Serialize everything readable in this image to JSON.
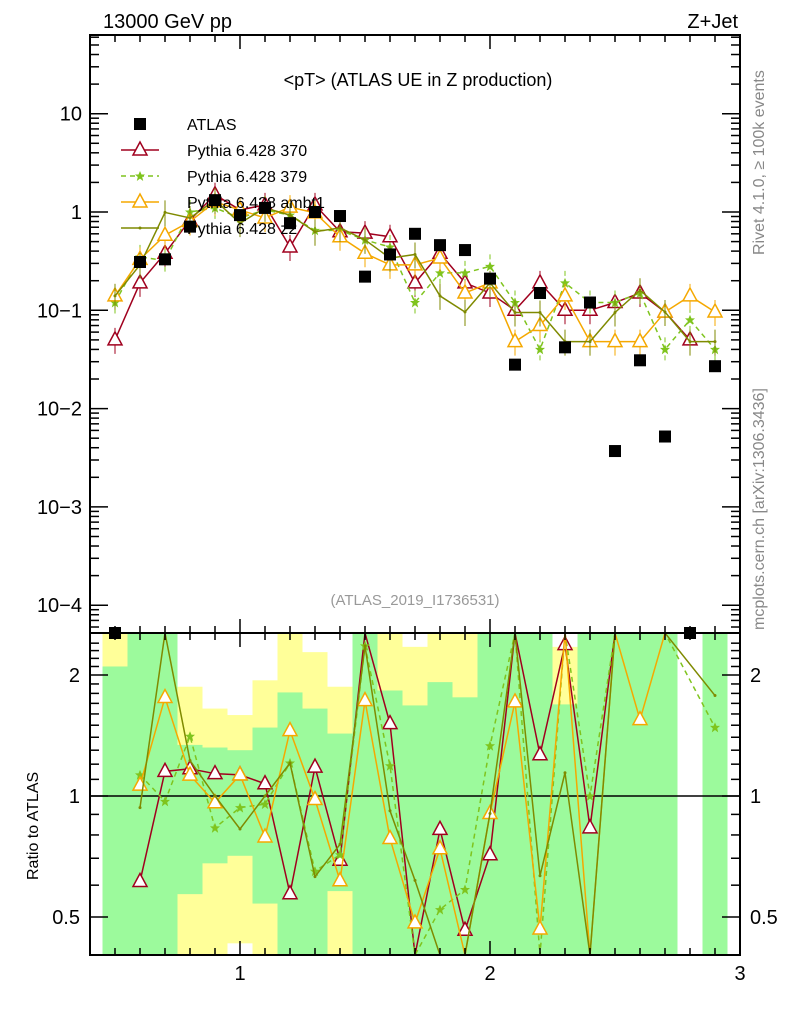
{
  "header": {
    "left": "13000 GeV pp",
    "right": "Z+Jet"
  },
  "side_text": {
    "top": "Rivet 4.1.0, ≥ 100k events",
    "bottom": "mcplots.cern.ch [arXiv:1306.3436]"
  },
  "chart_data": [
    {
      "type": "line",
      "title": "<pT> (ATLAS UE in Z production)",
      "annotation": "(ATLAS_2019_I1736531)",
      "xlabel": "",
      "ylabel": "",
      "yscale": "log",
      "xlim": [
        0.4,
        3.0
      ],
      "ylim": [
        5e-05,
        63
      ],
      "xticks": [
        "1",
        "2",
        "3"
      ],
      "yticks": [
        {
          "v": 10,
          "label": "10"
        },
        {
          "v": 1,
          "label": "1"
        },
        {
          "v": 0.1,
          "label": "10−1"
        },
        {
          "v": 0.01,
          "label": "10−2"
        },
        {
          "v": 0.001,
          "label": "10−3"
        },
        {
          "v": 0.0001,
          "label": "10−4"
        }
      ],
      "legend_position": "top-left",
      "x": [
        0.5,
        0.6,
        0.7,
        0.8,
        0.9,
        1.0,
        1.1,
        1.2,
        1.3,
        1.4,
        1.5,
        1.6,
        1.7,
        1.8,
        1.9,
        2.0,
        2.1,
        2.2,
        2.3,
        2.4,
        2.5,
        2.6,
        2.7,
        2.8,
        2.9
      ],
      "series": [
        {
          "name": "ATLAS",
          "color": "#000000",
          "marker": "square",
          "line": "none",
          "values": [
            5e-05,
            0.31,
            0.33,
            0.71,
            1.32,
            0.93,
            1.1,
            0.77,
            1.0,
            0.91,
            0.22,
            0.37,
            0.6,
            0.46,
            0.41,
            0.21,
            0.028,
            0.15,
            0.042,
            0.12,
            0.0037,
            0.031,
            0.0052,
            5e-05,
            0.027
          ]
        },
        {
          "name": "Pythia 6.428 370",
          "color": "#a0001e",
          "marker": "triangle",
          "line": "solid",
          "values": [
            0.05,
            0.19,
            0.38,
            0.83,
            1.5,
            1.05,
            1.18,
            0.44,
            1.18,
            0.63,
            0.61,
            0.56,
            0.19,
            0.38,
            0.19,
            0.15,
            0.1,
            0.19,
            0.1,
            0.1,
            0.12,
            0.15,
            0.096,
            0.05,
            null
          ]
        },
        {
          "name": "Pythia 6.428 379",
          "color": "#7fc41e",
          "marker": "star",
          "line": "dashed",
          "values": [
            0.12,
            0.35,
            0.32,
            1.0,
            1.1,
            0.87,
            1.05,
            0.93,
            0.65,
            0.65,
            0.52,
            0.44,
            0.12,
            0.24,
            0.24,
            0.28,
            0.12,
            0.04,
            0.19,
            0.12,
            0.12,
            0.15,
            0.04,
            0.08,
            0.04
          ]
        },
        {
          "name": "Pythia 6.428 ambt1",
          "color": "#f5a800",
          "marker": "triangle",
          "line": "solid",
          "values": [
            0.14,
            0.33,
            0.58,
            0.8,
            1.27,
            1.05,
            0.87,
            1.12,
            0.98,
            0.56,
            0.38,
            0.29,
            0.29,
            0.34,
            0.15,
            0.19,
            0.048,
            0.07,
            0.14,
            0.048,
            0.048,
            0.048,
            0.096,
            0.14,
            0.096
          ]
        },
        {
          "name": "Pythia 6.428 z2",
          "color": "#7f8a00",
          "marker": "dot",
          "line": "solid",
          "values": [
            0.14,
            0.29,
            0.99,
            0.87,
            1.32,
            0.77,
            1.1,
            0.93,
            0.63,
            0.69,
            0.52,
            0.34,
            0.37,
            0.14,
            0.096,
            0.19,
            0.095,
            0.095,
            0.048,
            0.048,
            0.095,
            0.16,
            0.096,
            0.048,
            0.048
          ]
        }
      ]
    },
    {
      "type": "line",
      "title": "",
      "ylabel": "Ratio to ATLAS",
      "yscale": "log",
      "xlim": [
        0.4,
        3.0
      ],
      "ylim": [
        0.4,
        2.54
      ],
      "xticks": [
        "1",
        "2",
        "3"
      ],
      "yticks": [
        {
          "v": 2,
          "label": "2"
        },
        {
          "v": 1,
          "label": "1"
        },
        {
          "v": 0.5,
          "label": "0.5"
        }
      ],
      "band_colors": {
        "inner": "#9cfa9c",
        "outer": "#ffff99"
      },
      "bands": [
        {
          "x": 0.5,
          "inner": [
            0.3,
            2.1
          ],
          "outer": [
            0.3,
            3
          ]
        },
        {
          "x": 0.6,
          "inner": [
            0.3,
            3
          ],
          "outer": [
            0.3,
            3
          ]
        },
        {
          "x": 0.7,
          "inner": [
            0.3,
            3
          ],
          "outer": [
            0.3,
            3
          ]
        },
        {
          "x": 0.8,
          "inner": [
            0.57,
            1.34
          ],
          "outer": [
            0.3,
            1.87
          ]
        },
        {
          "x": 0.9,
          "inner": [
            0.68,
            1.32
          ],
          "outer": [
            0.3,
            1.65
          ]
        },
        {
          "x": 1.0,
          "inner": [
            0.71,
            1.3
          ],
          "outer": [
            0.43,
            1.59
          ]
        },
        {
          "x": 1.1,
          "inner": [
            0.54,
            1.48
          ],
          "outer": [
            0.3,
            1.94
          ]
        },
        {
          "x": 1.2,
          "inner": [
            0.3,
            1.81
          ],
          "outer": [
            0.3,
            3
          ]
        },
        {
          "x": 1.3,
          "inner": [
            0.3,
            1.65
          ],
          "outer": [
            0.3,
            2.28
          ]
        },
        {
          "x": 1.4,
          "inner": [
            0.58,
            1.43
          ],
          "outer": [
            0.3,
            1.87
          ]
        },
        {
          "x": 1.5,
          "inner": [
            0.3,
            3
          ],
          "outer": [
            0.3,
            3
          ]
        },
        {
          "x": 1.6,
          "inner": [
            0.3,
            1.83
          ],
          "outer": [
            0.3,
            3
          ]
        },
        {
          "x": 1.7,
          "inner": [
            0.3,
            1.68
          ],
          "outer": [
            0.3,
            2.35
          ]
        },
        {
          "x": 1.8,
          "inner": [
            0.3,
            1.92
          ],
          "outer": [
            0.3,
            3
          ]
        },
        {
          "x": 1.9,
          "inner": [
            0.3,
            1.76
          ],
          "outer": [
            0.3,
            3
          ]
        },
        {
          "x": 2.0,
          "inner": [
            0.3,
            3
          ],
          "outer": [
            0.3,
            3
          ]
        },
        {
          "x": 2.1,
          "inner": [
            0.3,
            3
          ],
          "outer": [
            0.3,
            3
          ]
        },
        {
          "x": 2.2,
          "inner": [
            0.3,
            3
          ],
          "outer": [
            0.3,
            3
          ]
        },
        {
          "x": 2.3,
          "inner": [
            0.3,
            1.69
          ],
          "outer": [
            0.3,
            2.35
          ]
        },
        {
          "x": 2.4,
          "inner": [
            0.3,
            3
          ],
          "outer": [
            0.3,
            3
          ]
        },
        {
          "x": 2.5,
          "inner": [
            0.3,
            3
          ],
          "outer": [
            0.3,
            3
          ]
        },
        {
          "x": 2.6,
          "inner": [
            0.3,
            3
          ],
          "outer": [
            0.3,
            3
          ]
        },
        {
          "x": 2.7,
          "inner": [
            0.3,
            3
          ],
          "outer": [
            0.3,
            3
          ]
        },
        {
          "x": 2.9,
          "inner": [
            0.3,
            3
          ],
          "outer": [
            0.3,
            3
          ]
        }
      ]
    }
  ]
}
